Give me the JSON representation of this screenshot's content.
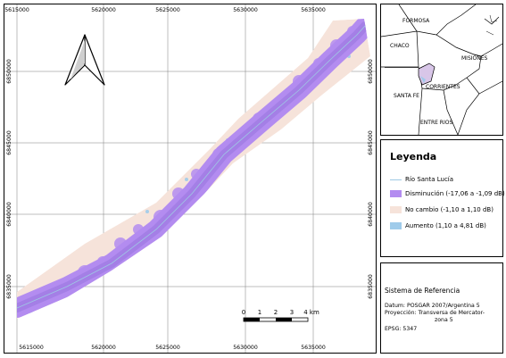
{
  "main_map": {
    "x_ticks_top": [
      "5615000",
      "5620000",
      "5625000",
      "5630000",
      "5635000"
    ],
    "x_ticks_bottom": [
      "5615000",
      "5620000",
      "5625000",
      "5630000",
      "5635000"
    ],
    "y_ticks_left": [
      "6850000",
      "6845000",
      "6840000",
      "6835000"
    ],
    "y_ticks_right": [
      "6850000",
      "6845000",
      "6840000",
      "6835000"
    ],
    "north_arrow_icon": "north-arrow-icon",
    "scale_bar": {
      "labels": [
        "0",
        "1",
        "2",
        "3",
        "4 km"
      ]
    },
    "colors": {
      "disminucion": "#b38cf0",
      "no_cambio": "#f6e3da",
      "aumento": "#9fcbea",
      "river": "#9ec9e4"
    }
  },
  "inset_map": {
    "labels": {
      "formosa": "FORMOSA",
      "chaco": "CHACO",
      "misiones": "MISIONES",
      "corrientes": "CORRIENTES",
      "santa_fe": "SANTA FE",
      "entre_rios": "ENTRE RIOS"
    }
  },
  "legend": {
    "title": "Leyenda",
    "items": [
      {
        "label": "Río Santa Lucía",
        "kind": "line",
        "color": "#9ec9e4"
      },
      {
        "label": "Disminución (-17,06 a -1,09 dB)",
        "kind": "fill",
        "color": "#b38cf0"
      },
      {
        "label": "No cambio (-1,10 a 1,10 dB)",
        "kind": "fill",
        "color": "#f6e3da"
      },
      {
        "label": "Aumento (1,10 a 4,81 dB)",
        "kind": "fill",
        "color": "#9fcbea"
      }
    ]
  },
  "reference_system": {
    "title": "Sistema de Referencia",
    "datum": "Datum: POSGAR 2007/Argentina 5",
    "projection_line1": "Proyección: Transversa de Mercator-",
    "projection_line2": "zona 5",
    "epsg": "EPSG: 5347"
  }
}
